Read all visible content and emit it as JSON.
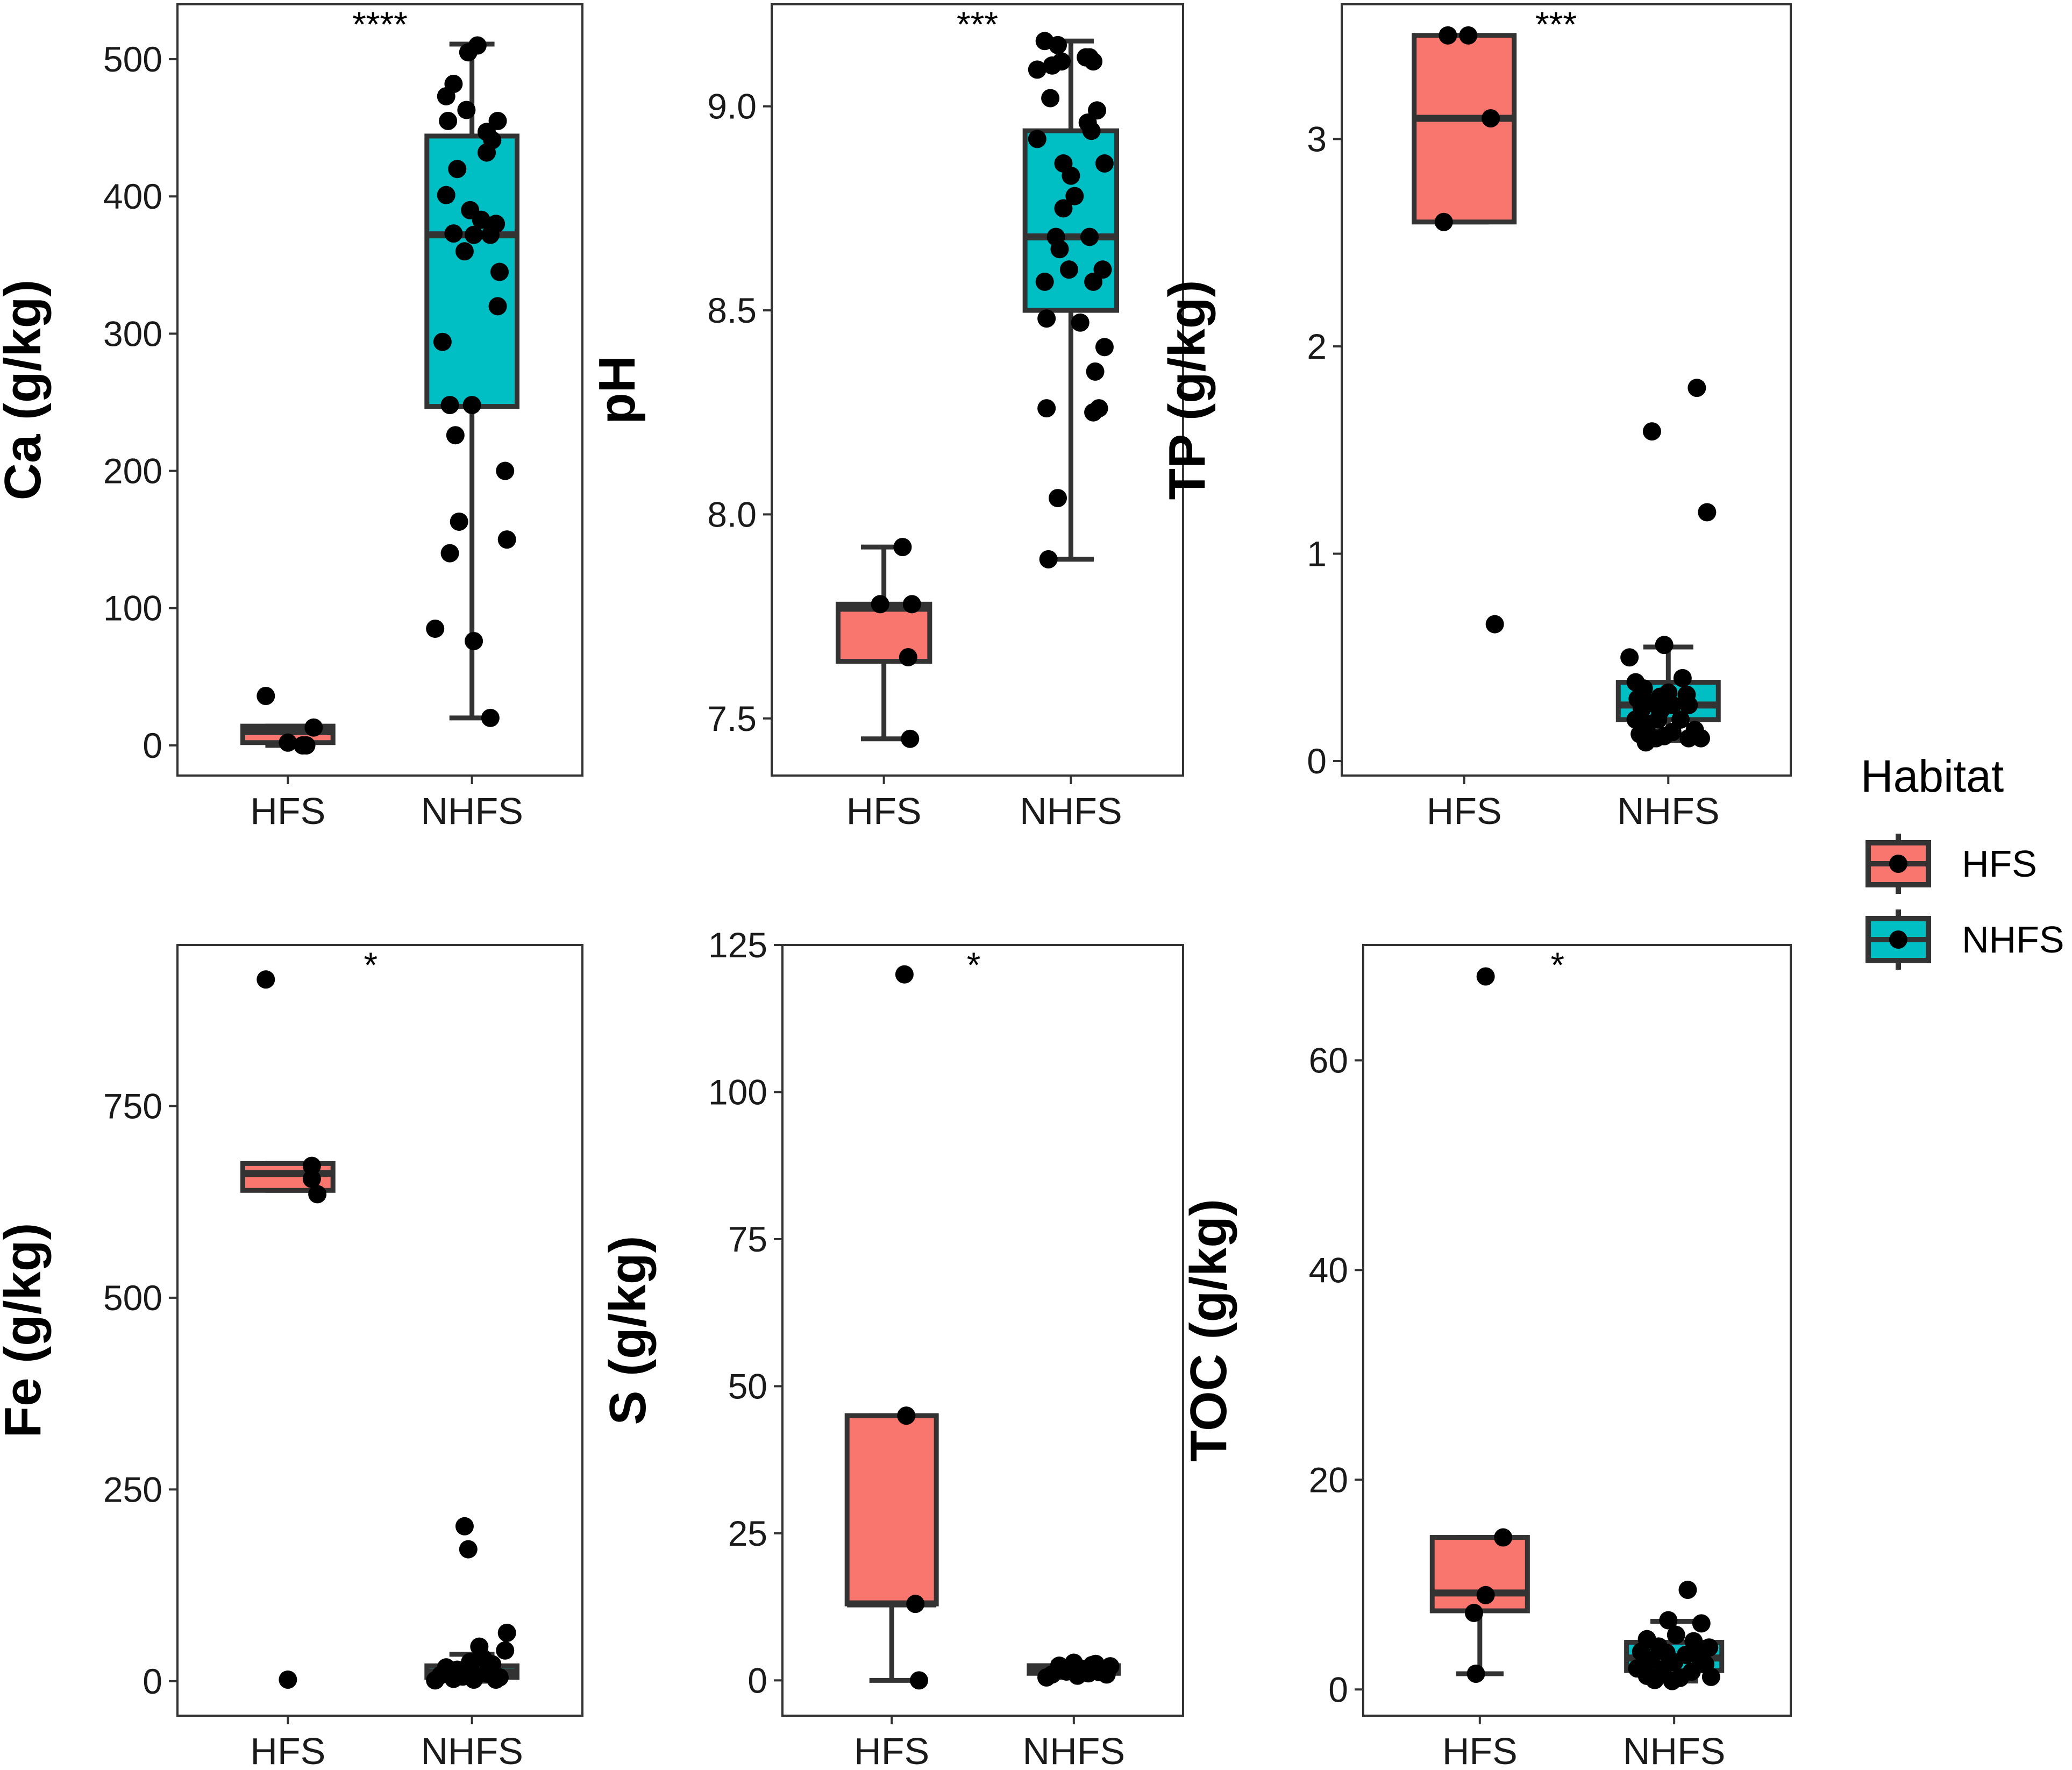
{
  "chart_data": [
    {
      "type": "box",
      "ylabel": "Ca (g/kg)",
      "categories": [
        "HFS",
        "NHFS"
      ],
      "yticks": [
        0,
        100,
        200,
        300,
        400,
        500
      ],
      "ylim": [
        -22,
        540
      ],
      "significance": "****",
      "sig_at": 1.5,
      "boxes": [
        {
          "group": "HFS",
          "q1": 2,
          "median": 10,
          "q3": 14,
          "lower": 0,
          "upper": 14,
          "fill": "#F8766D",
          "points": [
            [
              0.88,
              36
            ],
            [
              1.0,
              2
            ],
            [
              1.1,
              0
            ],
            [
              1.14,
              13
            ],
            [
              1.08,
              0
            ]
          ]
        },
        {
          "group": "NHFS",
          "q1": 247,
          "median": 372,
          "q3": 444,
          "lower": 20,
          "upper": 511,
          "fill": "#00BFC4",
          "points": [
            [
              1.86,
              473
            ],
            [
              1.9,
              482
            ],
            [
              1.98,
              505
            ],
            [
              2.03,
              510
            ],
            [
              1.97,
              463
            ],
            [
              2.14,
              455
            ],
            [
              2.08,
              447
            ],
            [
              2.11,
              441
            ],
            [
              1.87,
              455
            ],
            [
              1.92,
              420
            ],
            [
              1.86,
              401
            ],
            [
              2.08,
              432
            ],
            [
              1.99,
              390
            ],
            [
              2.05,
              383
            ],
            [
              2.13,
              380
            ],
            [
              1.9,
              373
            ],
            [
              2.01,
              372
            ],
            [
              2.1,
              372
            ],
            [
              1.96,
              360
            ],
            [
              2.15,
              345
            ],
            [
              2.14,
              320
            ],
            [
              1.84,
              294
            ],
            [
              1.88,
              248
            ],
            [
              2.0,
              248
            ],
            [
              1.91,
              226
            ],
            [
              2.18,
              200
            ],
            [
              1.93,
              163
            ],
            [
              1.88,
              140
            ],
            [
              2.19,
              150
            ],
            [
              1.8,
              85
            ],
            [
              2.01,
              76
            ],
            [
              2.1,
              20
            ]
          ]
        }
      ]
    },
    {
      "type": "box",
      "ylabel": "pH",
      "categories": [
        "HFS",
        "NHFS"
      ],
      "yticks": [
        7.5,
        8.0,
        8.5,
        9.0
      ],
      "ytick_labels": [
        "7.5",
        "8.0",
        "8.5",
        "9.0"
      ],
      "ylim": [
        7.36,
        9.25
      ],
      "significance": "***",
      "sig_at": 1.5,
      "boxes": [
        {
          "group": "HFS",
          "q1": 7.64,
          "median": 7.77,
          "q3": 7.78,
          "lower": 7.45,
          "upper": 7.92,
          "fill": "#F8766D",
          "points": [
            [
              1.1,
              7.92
            ],
            [
              0.98,
              7.78
            ],
            [
              1.15,
              7.78
            ],
            [
              1.13,
              7.65
            ],
            [
              1.14,
              7.45
            ]
          ]
        },
        {
          "group": "NHFS",
          "q1": 8.5,
          "median": 8.68,
          "q3": 8.94,
          "lower": 7.89,
          "upper": 9.16,
          "fill": "#00BFC4",
          "points": [
            [
              1.86,
              9.16
            ],
            [
              1.93,
              9.15
            ],
            [
              1.9,
              9.1
            ],
            [
              2.08,
              9.12
            ],
            [
              2.1,
              9.12
            ],
            [
              2.12,
              9.11
            ],
            [
              1.95,
              9.11
            ],
            [
              1.82,
              9.09
            ],
            [
              1.89,
              9.02
            ],
            [
              2.14,
              8.99
            ],
            [
              2.09,
              8.96
            ],
            [
              2.11,
              8.94
            ],
            [
              1.82,
              8.92
            ],
            [
              1.96,
              8.86
            ],
            [
              2.18,
              8.86
            ],
            [
              2.0,
              8.83
            ],
            [
              2.02,
              8.78
            ],
            [
              1.96,
              8.75
            ],
            [
              1.92,
              8.68
            ],
            [
              2.1,
              8.68
            ],
            [
              1.94,
              8.65
            ],
            [
              2.17,
              8.6
            ],
            [
              1.99,
              8.6
            ],
            [
              1.86,
              8.57
            ],
            [
              2.12,
              8.57
            ],
            [
              2.05,
              8.47
            ],
            [
              1.87,
              8.48
            ],
            [
              2.18,
              8.41
            ],
            [
              2.13,
              8.35
            ],
            [
              2.12,
              8.25
            ],
            [
              2.15,
              8.26
            ],
            [
              1.87,
              8.26
            ],
            [
              1.93,
              8.04
            ],
            [
              1.88,
              7.89
            ]
          ]
        }
      ]
    },
    {
      "type": "box",
      "ylabel": "TP (g/kg)",
      "categories": [
        "HFS",
        "NHFS"
      ],
      "yticks": [
        0,
        1,
        2,
        3
      ],
      "ylim": [
        -0.07,
        3.65
      ],
      "significance": "***",
      "sig_at": 1.45,
      "boxes": [
        {
          "group": "HFS",
          "q1": 2.6,
          "median": 3.1,
          "q3": 3.5,
          "lower": 2.6,
          "upper": 3.5,
          "fill": "#F8766D",
          "points": [
            [
              0.92,
              3.5
            ],
            [
              1.02,
              3.5
            ],
            [
              1.13,
              3.1
            ],
            [
              0.9,
              2.6
            ],
            [
              1.15,
              0.66
            ]
          ]
        },
        {
          "group": "NHFS",
          "q1": 0.2,
          "median": 0.27,
          "q3": 0.38,
          "lower": 0.1,
          "upper": 0.55,
          "fill": "#00BFC4",
          "points": [
            [
              2.14,
              1.8
            ],
            [
              1.92,
              1.59
            ],
            [
              2.19,
              1.2
            ],
            [
              1.98,
              0.56
            ],
            [
              1.81,
              0.5
            ],
            [
              2.07,
              0.4
            ],
            [
              1.84,
              0.38
            ],
            [
              1.88,
              0.35
            ],
            [
              2.0,
              0.33
            ],
            [
              2.09,
              0.32
            ],
            [
              1.96,
              0.31
            ],
            [
              1.85,
              0.3
            ],
            [
              1.91,
              0.28
            ],
            [
              2.02,
              0.27
            ],
            [
              2.1,
              0.27
            ],
            [
              1.87,
              0.25
            ],
            [
              1.96,
              0.24
            ],
            [
              1.84,
              0.2
            ],
            [
              1.95,
              0.2
            ],
            [
              2.06,
              0.2
            ],
            [
              1.9,
              0.18
            ],
            [
              2.13,
              0.15
            ],
            [
              2.02,
              0.14
            ],
            [
              1.86,
              0.13
            ],
            [
              1.94,
              0.11
            ],
            [
              1.98,
              0.12
            ],
            [
              2.1,
              0.11
            ],
            [
              2.16,
              0.11
            ],
            [
              1.89,
              0.09
            ]
          ]
        }
      ]
    },
    {
      "type": "box",
      "ylabel": "Fe (g/kg)",
      "categories": [
        "HFS",
        "NHFS"
      ],
      "yticks": [
        0,
        250,
        500,
        750
      ],
      "ylim": [
        -45,
        960
      ],
      "significance": "*",
      "sig_at": 1.45,
      "boxes": [
        {
          "group": "HFS",
          "q1": 640,
          "median": 662,
          "q3": 675,
          "lower": 640,
          "upper": 675,
          "fill": "#F8766D",
          "points": [
            [
              0.88,
              915
            ],
            [
              1.13,
              672
            ],
            [
              1.13,
              655
            ],
            [
              1.16,
              635
            ],
            [
              1.0,
              2
            ]
          ]
        },
        {
          "group": "NHFS",
          "q1": 5,
          "median": 12,
          "q3": 20,
          "lower": 0,
          "upper": 35,
          "fill": "#00BFC4",
          "points": [
            [
              1.96,
              202
            ],
            [
              1.98,
              172
            ],
            [
              2.19,
              63
            ],
            [
              2.04,
              45
            ],
            [
              2.18,
              40
            ],
            [
              2.06,
              30
            ],
            [
              1.99,
              25
            ],
            [
              2.11,
              22
            ],
            [
              1.86,
              18
            ],
            [
              1.92,
              15
            ],
            [
              2.0,
              12
            ],
            [
              2.08,
              10
            ],
            [
              1.83,
              8
            ],
            [
              1.95,
              6
            ],
            [
              2.15,
              5
            ],
            [
              1.9,
              3
            ],
            [
              2.01,
              2
            ],
            [
              2.13,
              2
            ],
            [
              1.8,
              1
            ]
          ]
        }
      ]
    },
    {
      "type": "box",
      "ylabel": "S (g/kg)",
      "categories": [
        "HFS",
        "NHFS"
      ],
      "yticks": [
        0,
        25,
        50,
        75,
        100,
        125
      ],
      "ylim": [
        -6,
        125
      ],
      "significance": "*",
      "sig_at": 1.45,
      "boxes": [
        {
          "group": "HFS",
          "q1": 13,
          "median": 13,
          "q3": 45,
          "lower": 0,
          "upper": 45,
          "fill": "#F8766D",
          "points": [
            [
              1.07,
              120
            ],
            [
              1.08,
              45
            ],
            [
              1.13,
              13
            ],
            [
              1.15,
              0
            ]
          ]
        },
        {
          "group": "NHFS",
          "q1": 1.2,
          "median": 2.0,
          "q3": 2.5,
          "lower": 0.5,
          "upper": 3.0,
          "fill": "#00BFC4",
          "points": [
            [
              1.88,
              1
            ],
            [
              1.92,
              2.5
            ],
            [
              1.96,
              1.5
            ],
            [
              2.0,
              3
            ],
            [
              2.04,
              2
            ],
            [
              2.08,
              1.2
            ],
            [
              2.12,
              2.8
            ],
            [
              2.16,
              1.8
            ],
            [
              2.2,
              2.4
            ],
            [
              1.85,
              0.5
            ],
            [
              2.02,
              0.8
            ],
            [
              2.14,
              1.4
            ],
            [
              1.94,
              2.2
            ],
            [
              2.1,
              2.6
            ],
            [
              2.18,
              1
            ]
          ]
        }
      ]
    },
    {
      "type": "box",
      "ylabel": "TOC (g/kg)",
      "categories": [
        "HFS",
        "NHFS"
      ],
      "yticks": [
        0,
        20,
        40,
        60
      ],
      "ylim": [
        -2.5,
        71
      ],
      "significance": "*",
      "sig_at": 1.4,
      "boxes": [
        {
          "group": "HFS",
          "q1": 7.5,
          "median": 9.2,
          "q3": 14.5,
          "lower": 1.5,
          "upper": 14.5,
          "fill": "#F8766D",
          "points": [
            [
              1.03,
              68
            ],
            [
              1.12,
              14.5
            ],
            [
              1.03,
              9
            ],
            [
              0.97,
              7.3
            ],
            [
              0.98,
              1.5
            ]
          ]
        },
        {
          "group": "NHFS",
          "q1": 1.8,
          "median": 3.0,
          "q3": 4.5,
          "lower": 0.8,
          "upper": 6.5,
          "fill": "#00BFC4",
          "points": [
            [
              2.07,
              9.5
            ],
            [
              1.97,
              6.6
            ],
            [
              2.14,
              6.3
            ],
            [
              1.86,
              4.8
            ],
            [
              2.01,
              5.2
            ],
            [
              2.1,
              4.6
            ],
            [
              1.92,
              4.1
            ],
            [
              2.18,
              4.0
            ],
            [
              1.83,
              3.6
            ],
            [
              1.96,
              3.5
            ],
            [
              2.06,
              3.3
            ],
            [
              2.13,
              3.1
            ],
            [
              1.88,
              2.8
            ],
            [
              2.0,
              2.6
            ],
            [
              2.16,
              2.4
            ],
            [
              1.81,
              2.0
            ],
            [
              1.94,
              1.9
            ],
            [
              2.09,
              1.7
            ],
            [
              1.86,
              1.3
            ],
            [
              2.03,
              1.1
            ],
            [
              2.19,
              1.2
            ],
            [
              1.9,
              0.9
            ],
            [
              1.99,
              0.8
            ]
          ]
        }
      ]
    }
  ],
  "legend": {
    "title": "Habitat",
    "items": [
      {
        "label": "HFS",
        "color": "#F8766D"
      },
      {
        "label": "NHFS",
        "color": "#00BFC4"
      }
    ]
  }
}
